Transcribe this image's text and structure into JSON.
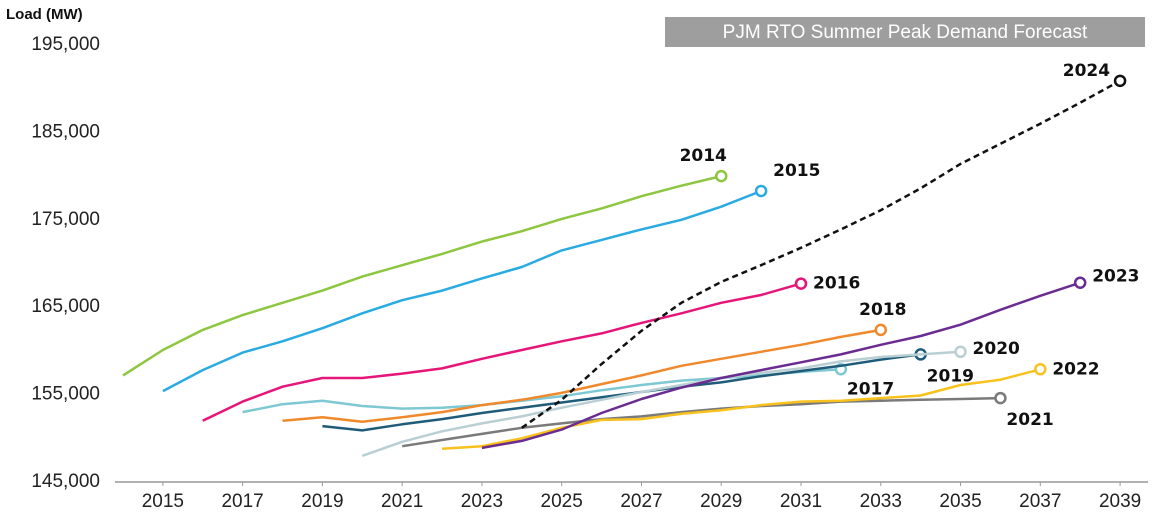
{
  "chart_data": {
    "type": "line",
    "title": "PJM RTO Summer Peak Demand Forecast",
    "y_label": "Load (MW)",
    "x": [
      2014,
      2015,
      2016,
      2017,
      2018,
      2019,
      2020,
      2021,
      2022,
      2023,
      2024,
      2025,
      2026,
      2027,
      2028,
      2029,
      2030,
      2031,
      2032,
      2033,
      2034,
      2035,
      2036,
      2037,
      2038,
      2039
    ],
    "series": [
      {
        "name": "2014",
        "color": "#8dc63f",
        "values": [
          157200,
          160100,
          162400,
          164100,
          165500,
          166900,
          168500,
          169800,
          171100,
          172500,
          173700,
          175100,
          176300,
          177700,
          178900,
          180000,
          null,
          null,
          null,
          null,
          null,
          null,
          null,
          null,
          null,
          null
        ]
      },
      {
        "name": "2015",
        "color": "#29abe2",
        "values": [
          null,
          155400,
          157800,
          159800,
          161100,
          162600,
          164300,
          165800,
          166900,
          168300,
          169600,
          171500,
          172700,
          173900,
          175000,
          176500,
          178300,
          null,
          null,
          null,
          null,
          null,
          null,
          null,
          null,
          null
        ]
      },
      {
        "name": "2016",
        "color": "#e6157a",
        "values": [
          null,
          null,
          152000,
          154200,
          155900,
          156900,
          156900,
          157400,
          158000,
          159100,
          160100,
          161100,
          162000,
          163200,
          164300,
          165500,
          166400,
          167700,
          null,
          null,
          null,
          null,
          null,
          null,
          null,
          null
        ]
      },
      {
        "name": "2017",
        "color": "#7ec8d3",
        "values": [
          null,
          null,
          null,
          153000,
          153900,
          154300,
          153700,
          153400,
          153500,
          153800,
          154300,
          154800,
          155500,
          156100,
          156600,
          156900,
          157200,
          157600,
          157900,
          null,
          null,
          null,
          null,
          null,
          null,
          null
        ]
      },
      {
        "name": "2018",
        "color": "#f0892b",
        "values": [
          null,
          null,
          null,
          null,
          152000,
          152400,
          151900,
          152400,
          153000,
          153800,
          154400,
          155200,
          156200,
          157200,
          158300,
          159100,
          159900,
          160700,
          161600,
          162400,
          null,
          null,
          null,
          null,
          null,
          null
        ]
      },
      {
        "name": "2019",
        "color": "#1f5c7a",
        "values": [
          null,
          null,
          null,
          null,
          null,
          151400,
          150900,
          151600,
          152200,
          152900,
          153500,
          154100,
          154700,
          155300,
          155900,
          156400,
          157100,
          157700,
          158300,
          159000,
          159600,
          null,
          null,
          null,
          null,
          null
        ]
      },
      {
        "name": "2020",
        "color": "#b9cfd4",
        "values": [
          null,
          null,
          null,
          null,
          null,
          null,
          148000,
          149600,
          150800,
          151700,
          152500,
          153500,
          154400,
          155300,
          156100,
          156900,
          157500,
          158000,
          158800,
          159300,
          159600,
          159900,
          null,
          null,
          null,
          null
        ]
      },
      {
        "name": "2021",
        "color": "#7a7a7a",
        "values": [
          null,
          null,
          null,
          null,
          null,
          null,
          null,
          149100,
          149800,
          150500,
          151200,
          151700,
          152200,
          152500,
          153000,
          153400,
          153700,
          153900,
          154200,
          154300,
          154400,
          154500,
          154600,
          null,
          null,
          null
        ]
      },
      {
        "name": "2022",
        "color": "#f9c11c",
        "values": [
          null,
          null,
          null,
          null,
          null,
          null,
          null,
          null,
          148800,
          149100,
          150000,
          151200,
          152100,
          152200,
          152800,
          153200,
          153800,
          154200,
          154300,
          154600,
          154900,
          156100,
          156700,
          157900,
          null,
          null
        ]
      },
      {
        "name": "2023",
        "color": "#6a2c91",
        "values": [
          null,
          null,
          null,
          null,
          null,
          null,
          null,
          null,
          null,
          148900,
          149700,
          151000,
          152900,
          154500,
          155800,
          156900,
          157800,
          158700,
          159600,
          160700,
          161700,
          163000,
          164700,
          166300,
          167800,
          null
        ]
      },
      {
        "name": "2024",
        "color": "#111111",
        "linestyle": "dashed",
        "values": [
          null,
          null,
          null,
          null,
          null,
          null,
          null,
          null,
          null,
          null,
          151200,
          154400,
          158500,
          162300,
          165500,
          167900,
          169800,
          171800,
          173900,
          176100,
          178600,
          181400,
          183700,
          186000,
          188400,
          190900
        ]
      }
    ],
    "xlim": [
      2013.8,
      2039.7
    ],
    "xticks": [
      2015,
      2017,
      2019,
      2021,
      2023,
      2025,
      2027,
      2029,
      2031,
      2033,
      2035,
      2037,
      2039
    ],
    "ylim": [
      145000,
      195000
    ],
    "yticks": [
      {
        "value": 145000,
        "label": "145,000"
      },
      {
        "value": 155000,
        "label": "155,000"
      },
      {
        "value": 165000,
        "label": "165,000"
      },
      {
        "value": 175000,
        "label": "175,000"
      },
      {
        "value": 185000,
        "label": "185,000"
      },
      {
        "value": 195000,
        "label": "195,000"
      }
    ],
    "grid": false
  }
}
